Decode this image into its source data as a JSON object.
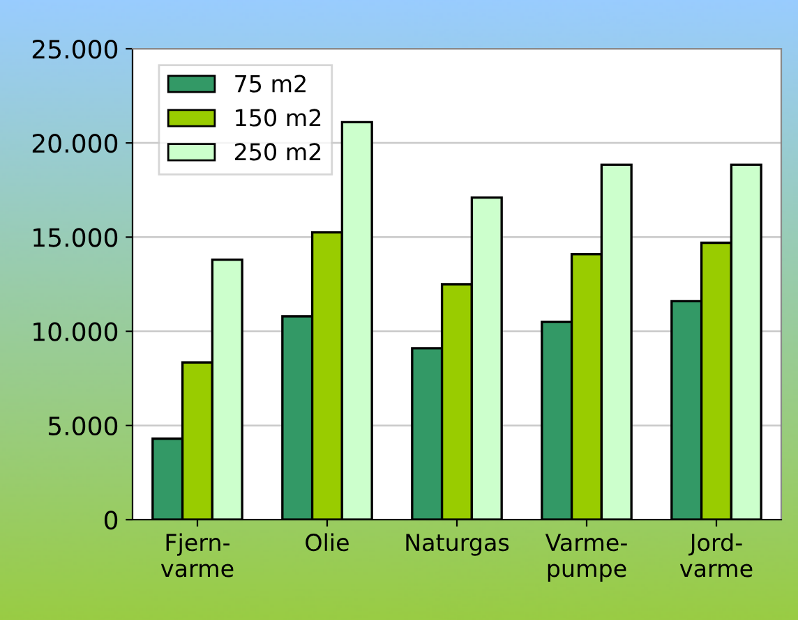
{
  "chart_data": {
    "type": "bar",
    "categories": [
      "Fjern-\nvarme",
      "Olie",
      "Naturgas",
      "Varme-\npumpe",
      "Jord-\nvarme"
    ],
    "series": [
      {
        "name": "75 m2",
        "color": "#339966",
        "values": [
          4300,
          10800,
          9100,
          10500,
          11600
        ]
      },
      {
        "name": "150 m2",
        "color": "#99cc00",
        "values": [
          8350,
          15250,
          12500,
          14100,
          14700
        ]
      },
      {
        "name": "250 m2",
        "color": "#ccffcc",
        "values": [
          13800,
          21100,
          17100,
          18850,
          18850
        ]
      }
    ],
    "ylim": [
      0,
      25000
    ],
    "yticks": [
      0,
      {
        "value": 5000,
        "label": "5.000"
      },
      {
        "value": 10000,
        "label": "10.000"
      },
      {
        "value": 15000,
        "label": "15.000"
      },
      {
        "value": 20000,
        "label": "20.000"
      },
      {
        "value": 25000,
        "label": "25.000"
      }
    ],
    "grid": "y",
    "legend": "top left"
  }
}
